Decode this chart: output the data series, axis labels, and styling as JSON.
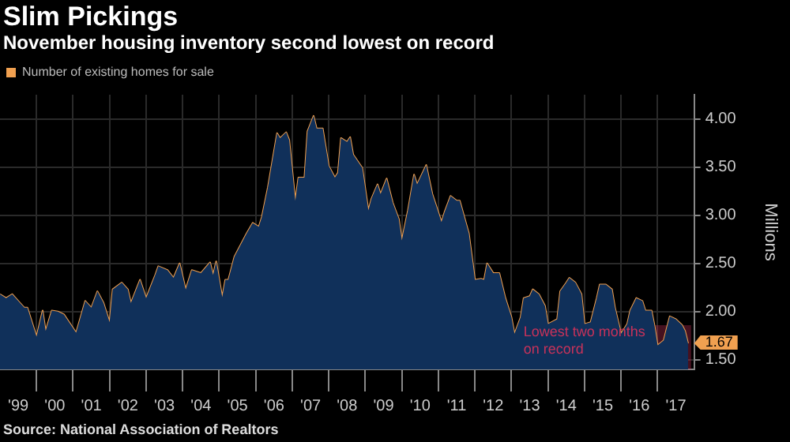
{
  "chart_data": {
    "type": "area",
    "title": "Slim Pickings",
    "subtitle": "November housing inventory second lowest on record",
    "ylabel": "Millions",
    "x": [
      "1999-01",
      "1999-03",
      "1999-05",
      "1999-07",
      "1999-09",
      "1999-10",
      "2000-01",
      "2000-03",
      "2000-04",
      "2000-06",
      "2000-08",
      "2000-10",
      "2001-02",
      "2001-05",
      "2001-07",
      "2001-09",
      "2001-11",
      "2002-01",
      "2002-02",
      "2002-05",
      "2002-07",
      "2002-08",
      "2002-11",
      "2003-01",
      "2003-04",
      "2003-05",
      "2003-08",
      "2003-10",
      "2003-12",
      "2004-02",
      "2004-04",
      "2004-07",
      "2004-10",
      "2004-11",
      "2004-12",
      "2005-02",
      "2005-03",
      "2005-04",
      "2005-06",
      "2005-10",
      "2005-12",
      "2006-02",
      "2006-03",
      "2006-05",
      "2006-08",
      "2006-09",
      "2006-11",
      "2006-12",
      "2007-02",
      "2007-03",
      "2007-05",
      "2007-06",
      "2007-08",
      "2007-09",
      "2007-11",
      "2008-01",
      "2008-03",
      "2008-04",
      "2008-05",
      "2008-07",
      "2008-08",
      "2008-09",
      "2008-12",
      "2009-02",
      "2009-03",
      "2009-05",
      "2009-06",
      "2009-08",
      "2009-10",
      "2009-12",
      "2010-01",
      "2010-03",
      "2010-05",
      "2010-06",
      "2010-09",
      "2010-11",
      "2011-02",
      "2011-03",
      "2011-05",
      "2011-07",
      "2011-08",
      "2011-11",
      "2012-01",
      "2012-03",
      "2012-04",
      "2012-05",
      "2012-07",
      "2012-09",
      "2012-11",
      "2013-01",
      "2013-02",
      "2013-04",
      "2013-05",
      "2013-07",
      "2013-08",
      "2013-10",
      "2013-12",
      "2014-01",
      "2014-04",
      "2014-05",
      "2014-07",
      "2014-08",
      "2014-10",
      "2014-12",
      "2015-01",
      "2015-03",
      "2015-05",
      "2015-06",
      "2015-08",
      "2015-10",
      "2015-11",
      "2016-01",
      "2016-03",
      "2016-04",
      "2016-06",
      "2016-08",
      "2016-09",
      "2016-11",
      "2016-12",
      "2017-01",
      "2017-03",
      "2017-05",
      "2017-07",
      "2017-09",
      "2017-10",
      "2017-11"
    ],
    "series": [
      {
        "type": "area",
        "color": "#10305a",
        "values": [
          2.18,
          2.14,
          2.18,
          2.11,
          2.04,
          2.04,
          1.74,
          2.01,
          1.8,
          2.01,
          2.0,
          1.97,
          1.78,
          2.11,
          2.04,
          2.21,
          2.09,
          1.89,
          2.23,
          2.3,
          2.23,
          2.09,
          2.33,
          2.14,
          2.38,
          2.47,
          2.43,
          2.35,
          2.5,
          2.23,
          2.43,
          2.4,
          2.51,
          2.38,
          2.52,
          2.15,
          2.33,
          2.33,
          2.57,
          2.81,
          2.92,
          2.88,
          2.98,
          3.29,
          3.85,
          3.8,
          3.86,
          3.78,
          3.15,
          3.39,
          3.39,
          3.87,
          4.03,
          3.9,
          3.9,
          3.51,
          3.39,
          3.44,
          3.8,
          3.76,
          3.81,
          3.63,
          3.49,
          3.05,
          3.17,
          3.32,
          3.22,
          3.38,
          3.13,
          2.96,
          2.74,
          3.05,
          3.42,
          3.32,
          3.52,
          3.22,
          2.93,
          3.03,
          3.2,
          3.15,
          3.15,
          2.81,
          2.33,
          2.34,
          2.33,
          2.5,
          2.4,
          2.4,
          2.14,
          1.94,
          1.77,
          1.94,
          2.14,
          2.16,
          2.23,
          2.18,
          2.06,
          1.87,
          1.92,
          2.21,
          2.3,
          2.35,
          2.3,
          2.18,
          1.87,
          1.89,
          2.14,
          2.28,
          2.28,
          2.23,
          2.04,
          1.77,
          1.87,
          2.01,
          2.14,
          2.11,
          2.01,
          2.01,
          1.85,
          1.65,
          1.7,
          1.95,
          1.92,
          1.86,
          1.8,
          1.67
        ]
      },
      {
        "type": "line",
        "name": "Number of existing homes for sale",
        "color": "#f0a050",
        "values": [
          2.18,
          2.14,
          2.18,
          2.11,
          2.04,
          2.04,
          1.74,
          2.01,
          1.8,
          2.01,
          2.0,
          1.97,
          1.78,
          2.11,
          2.04,
          2.21,
          2.09,
          1.89,
          2.23,
          2.3,
          2.23,
          2.09,
          2.33,
          2.14,
          2.38,
          2.47,
          2.43,
          2.35,
          2.5,
          2.23,
          2.43,
          2.4,
          2.51,
          2.38,
          2.52,
          2.15,
          2.33,
          2.33,
          2.57,
          2.81,
          2.92,
          2.88,
          2.98,
          3.29,
          3.85,
          3.8,
          3.86,
          3.78,
          3.15,
          3.39,
          3.39,
          3.87,
          4.03,
          3.9,
          3.9,
          3.51,
          3.39,
          3.44,
          3.8,
          3.76,
          3.81,
          3.63,
          3.49,
          3.05,
          3.17,
          3.32,
          3.22,
          3.38,
          3.13,
          2.96,
          2.74,
          3.05,
          3.42,
          3.32,
          3.52,
          3.22,
          2.93,
          3.03,
          3.2,
          3.15,
          3.15,
          2.81,
          2.33,
          2.34,
          2.33,
          2.5,
          2.4,
          2.4,
          2.14,
          1.94,
          1.77,
          1.94,
          2.14,
          2.16,
          2.23,
          2.18,
          2.06,
          1.87,
          1.92,
          2.21,
          2.3,
          2.35,
          2.3,
          2.18,
          1.87,
          1.89,
          2.14,
          2.28,
          2.28,
          2.23,
          2.04,
          1.77,
          1.87,
          2.01,
          2.14,
          2.11,
          2.01,
          2.01,
          1.85,
          1.65,
          1.7,
          1.95,
          1.92,
          1.86,
          1.8,
          1.67
        ],
        "value_labels": [
          null,
          null,
          null,
          null,
          null,
          null,
          null,
          null,
          null,
          null,
          null,
          null,
          null,
          null,
          null,
          null,
          null,
          null,
          null,
          null,
          null,
          null,
          null,
          null,
          null,
          null,
          null,
          null,
          null,
          null,
          null,
          null,
          null,
          null,
          null,
          null,
          null,
          null,
          null,
          null,
          null,
          null,
          null,
          null,
          null,
          null,
          null,
          null,
          null,
          null,
          null,
          null,
          null,
          null,
          null,
          null,
          null,
          null,
          null,
          null,
          null,
          null,
          null,
          null,
          null,
          null,
          null,
          null,
          null,
          null,
          null,
          null,
          null,
          null,
          null,
          null,
          null,
          null,
          null,
          null,
          null,
          null,
          null,
          null,
          null,
          null,
          null,
          null,
          null,
          null,
          null,
          null,
          null,
          null,
          null,
          null,
          null,
          null,
          null,
          null,
          null,
          null,
          null,
          null,
          null,
          null,
          null,
          null,
          null,
          null,
          null,
          null,
          null,
          null,
          null,
          null,
          null,
          null,
          null,
          null,
          null,
          null,
          null,
          null,
          null,
          "1.67"
        ]
      }
    ],
    "xlim": [
      "1999-01",
      "2018-01"
    ],
    "xticks": [
      {
        "value": "1999-07",
        "label": "'99"
      },
      {
        "value": "2000",
        "label": null
      },
      {
        "value": "2000-07",
        "label": "'00"
      },
      {
        "value": "2001",
        "label": null
      },
      {
        "value": "2001-07",
        "label": "'01"
      },
      {
        "value": "2002",
        "label": null
      },
      {
        "value": "2002-07",
        "label": "'02"
      },
      {
        "value": "2003",
        "label": null
      },
      {
        "value": "2003-07",
        "label": "'03"
      },
      {
        "value": "2004",
        "label": null
      },
      {
        "value": "2004-07",
        "label": "'04"
      },
      {
        "value": "2005",
        "label": null
      },
      {
        "value": "2005-07",
        "label": "'05"
      },
      {
        "value": "2006",
        "label": null
      },
      {
        "value": "2006-07",
        "label": "'06"
      },
      {
        "value": "2007",
        "label": null
      },
      {
        "value": "2007-07",
        "label": "'07"
      },
      {
        "value": "2008",
        "label": null
      },
      {
        "value": "2008-07",
        "label": "'08"
      },
      {
        "value": "2009",
        "label": null
      },
      {
        "value": "2009-07",
        "label": "'09"
      },
      {
        "value": "2010",
        "label": null
      },
      {
        "value": "2010-07",
        "label": "'10"
      },
      {
        "value": "2011",
        "label": null
      },
      {
        "value": "2011-07",
        "label": "'11"
      },
      {
        "value": "2012",
        "label": null
      },
      {
        "value": "2012-07",
        "label": "'12"
      },
      {
        "value": "2013",
        "label": null
      },
      {
        "value": "2013-07",
        "label": "'13"
      },
      {
        "value": "2014",
        "label": null
      },
      {
        "value": "2014-07",
        "label": "'14"
      },
      {
        "value": "2015",
        "label": null
      },
      {
        "value": "2015-07",
        "label": "'15"
      },
      {
        "value": "2016",
        "label": null
      },
      {
        "value": "2016-07",
        "label": "'16"
      },
      {
        "value": "2017",
        "label": null
      },
      {
        "value": "2017-07",
        "label": "'17"
      }
    ],
    "ylim": [
      1.4,
      4.25
    ],
    "yticks": [
      {
        "value": 1.5,
        "label": "1.50"
      },
      {
        "value": 2,
        "label": "2.00"
      },
      {
        "value": 2.5,
        "label": "2.50"
      },
      {
        "value": 3,
        "label": "3.00"
      },
      {
        "value": 3.5,
        "label": "3.50"
      },
      {
        "value": 4,
        "label": "4.00"
      }
    ],
    "bands": [
      {
        "axis": "x",
        "from": "2016-11",
        "to": "2017-12",
        "label": "Lowest two months on record",
        "color": "#c8325a"
      }
    ],
    "annotations": [
      "Source: National Association of Realtors"
    ],
    "grid": true,
    "legend": "top left"
  }
}
